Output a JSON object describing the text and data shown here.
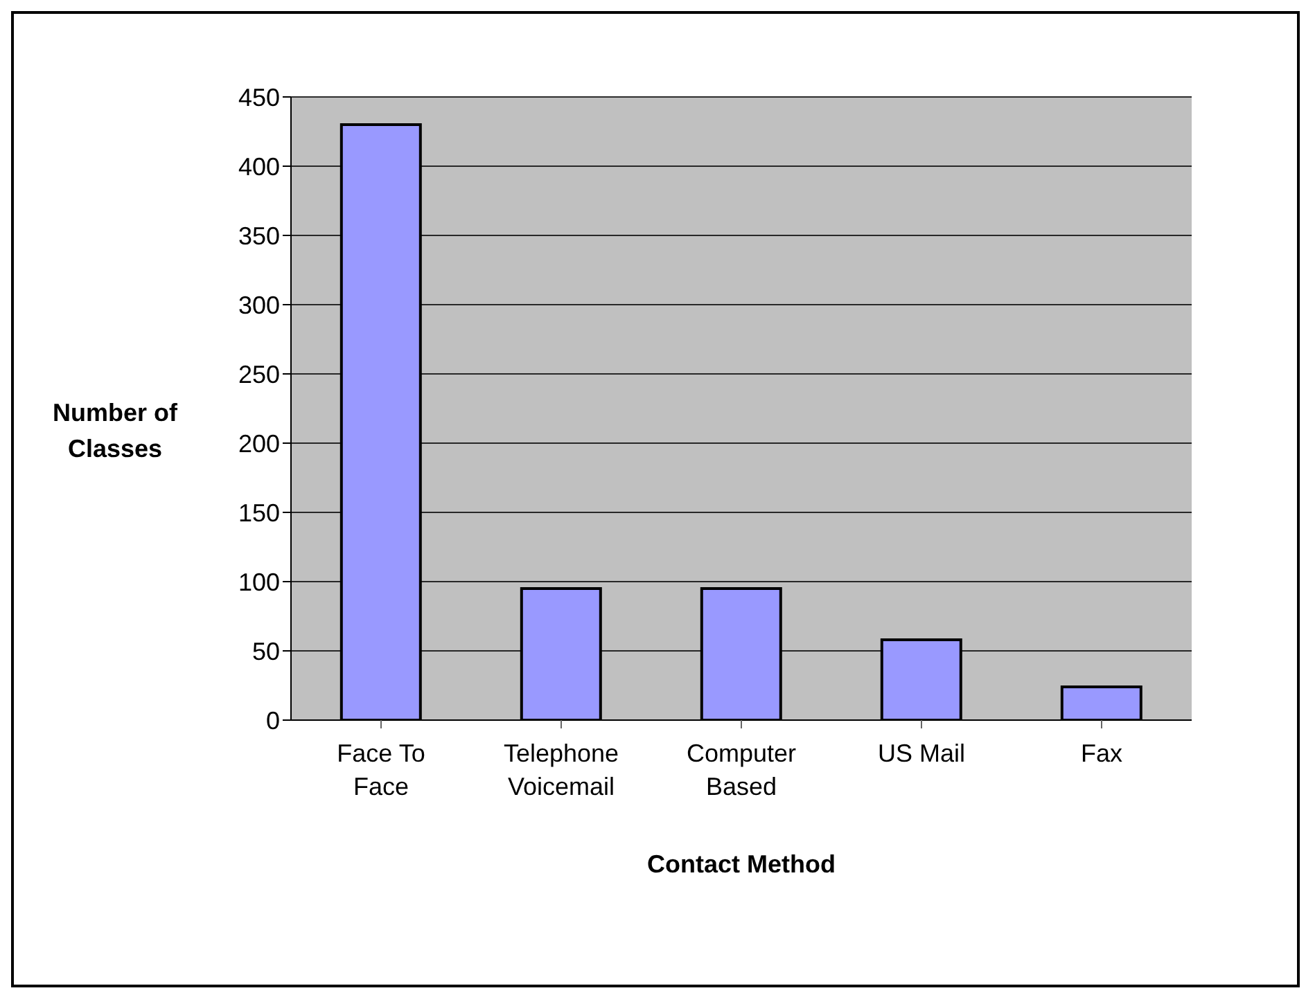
{
  "chart_data": {
    "type": "bar",
    "xlabel": "Contact Method",
    "ylabel": "Number of Classes",
    "categories": [
      "Face To Face",
      "Telephone Voicemail",
      "Computer Based",
      "US Mail",
      "Fax"
    ],
    "values": [
      430,
      95,
      95,
      58,
      24
    ],
    "color": "#9999ff",
    "ylim": [
      0,
      450
    ],
    "yticks": [
      0,
      50,
      100,
      150,
      200,
      250,
      300,
      350,
      400,
      450
    ],
    "grid": "y"
  }
}
